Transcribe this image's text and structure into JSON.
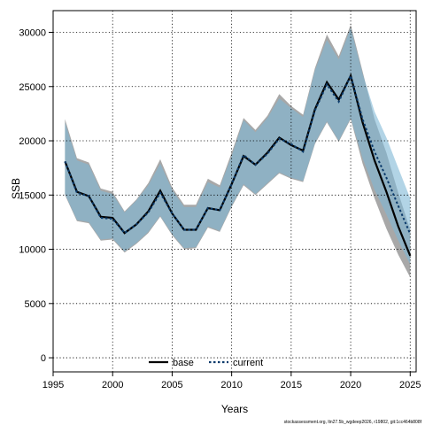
{
  "chart_data": {
    "type": "line",
    "xlabel": "Years",
    "ylabel": "SSB",
    "xlim": [
      1995,
      2025.5
    ],
    "ylim": [
      -1300,
      32000
    ],
    "xticks": [
      1995,
      2000,
      2005,
      2010,
      2015,
      2020,
      2025
    ],
    "yticks": [
      0,
      5000,
      10000,
      15000,
      20000,
      25000,
      30000
    ],
    "grid": true,
    "legend_position": "bottom-center",
    "footer": "stockassessment.org, ltn27.5b_wgdeep2026, r19802, git:1cc464b808f",
    "series": [
      {
        "name": "base",
        "color": "#000000",
        "style": "solid",
        "band_color": "#999999",
        "x": [
          1996,
          1997,
          1998,
          1999,
          2000,
          2001,
          2002,
          2003,
          2004,
          2005,
          2006,
          2007,
          2008,
          2009,
          2010,
          2011,
          2012,
          2013,
          2014,
          2015,
          2016,
          2017,
          2018,
          2019,
          2020,
          2021,
          2022,
          2023,
          2024,
          2025
        ],
        "values": [
          18100,
          15300,
          14900,
          13000,
          12900,
          11500,
          12300,
          13500,
          15400,
          13300,
          11800,
          11800,
          13800,
          13600,
          16000,
          18600,
          17800,
          18900,
          20300,
          19600,
          19100,
          22900,
          25400,
          23800,
          26000,
          21700,
          18200,
          15300,
          12100,
          9400
        ],
        "lower": [
          15000,
          12600,
          12400,
          10800,
          10900,
          9700,
          10500,
          11500,
          13000,
          11300,
          10000,
          10100,
          12000,
          11600,
          13900,
          15900,
          15000,
          16000,
          17000,
          16500,
          16200,
          19700,
          21700,
          19900,
          22000,
          17900,
          14700,
          11900,
          9500,
          7400
        ],
        "upper": [
          22000,
          18400,
          18000,
          15600,
          15300,
          13500,
          14600,
          16100,
          18300,
          15700,
          14100,
          14100,
          16500,
          15900,
          18900,
          22100,
          21000,
          22300,
          24300,
          23200,
          22400,
          26700,
          29800,
          27800,
          30700,
          26400,
          22000,
          18900,
          15200,
          11800
        ]
      },
      {
        "name": "current",
        "color": "#0a3a6b",
        "style": "dotted",
        "band_color": "#7fb8d6",
        "x": [
          1996,
          1997,
          1998,
          1999,
          2000,
          2001,
          2002,
          2003,
          2004,
          2005,
          2006,
          2007,
          2008,
          2009,
          2010,
          2011,
          2012,
          2013,
          2014,
          2015,
          2016,
          2017,
          2018,
          2019,
          2020,
          2021,
          2022,
          2023,
          2024,
          2025
        ],
        "values": [
          18100,
          15200,
          14900,
          12900,
          12800,
          11500,
          12300,
          13400,
          15200,
          13300,
          11800,
          11800,
          13800,
          13600,
          16000,
          18700,
          17800,
          18800,
          20200,
          19700,
          19000,
          22800,
          25200,
          23600,
          26000,
          22000,
          19000,
          16600,
          14000,
          11400
        ],
        "lower": [
          15100,
          12700,
          12500,
          10900,
          11000,
          9800,
          10600,
          11600,
          13100,
          11400,
          10100,
          10200,
          12100,
          11700,
          14000,
          16000,
          15100,
          16100,
          17100,
          16600,
          16300,
          19800,
          21800,
          20000,
          22100,
          18400,
          15500,
          13200,
          10800,
          8600
        ],
        "upper": [
          21700,
          18200,
          17800,
          15400,
          15100,
          13400,
          14500,
          15900,
          17900,
          15500,
          13900,
          13900,
          16200,
          15700,
          18600,
          21900,
          20800,
          22100,
          23900,
          23000,
          22200,
          26500,
          29300,
          27500,
          30400,
          26200,
          22700,
          20300,
          17500,
          14700
        ]
      }
    ]
  }
}
